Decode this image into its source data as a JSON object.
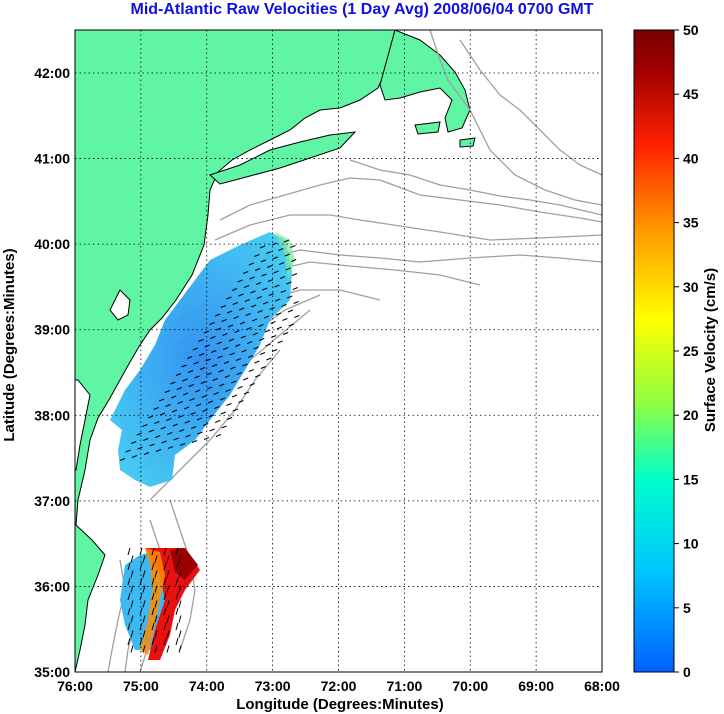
{
  "title": "Mid-Atlantic Raw Velocities (1 Day Avg) 2008/06/04 0700 GMT",
  "map": {
    "xlabel": "Longitude (Degrees:Minutes)",
    "ylabel": "Latitude (Degrees:Minutes)",
    "lon_ticks": [
      "76:00",
      "75:00",
      "74:00",
      "73:00",
      "72:00",
      "71:00",
      "70:00",
      "69:00",
      "68:00"
    ],
    "lat_ticks": [
      "42:00",
      "41:00",
      "40:00",
      "39:00",
      "38:00",
      "37:00",
      "36:00",
      "35:00"
    ],
    "land_color": "#5ff5a5",
    "coast_color": "#000000",
    "bathymetry_color": "#a0a0a0",
    "grid": true
  },
  "colorbar": {
    "label": "Surface Velocity (cm/s)",
    "ticks": [
      "50",
      "45",
      "40",
      "35",
      "30",
      "25",
      "20",
      "15",
      "10",
      "5",
      "0"
    ],
    "range": [
      0,
      50
    ],
    "colormap": [
      "#0060ff",
      "#00c8ff",
      "#00ffcc",
      "#90ff40",
      "#ffff00",
      "#ff9000",
      "#ff2000",
      "#a00000",
      "#7a0000"
    ]
  }
}
